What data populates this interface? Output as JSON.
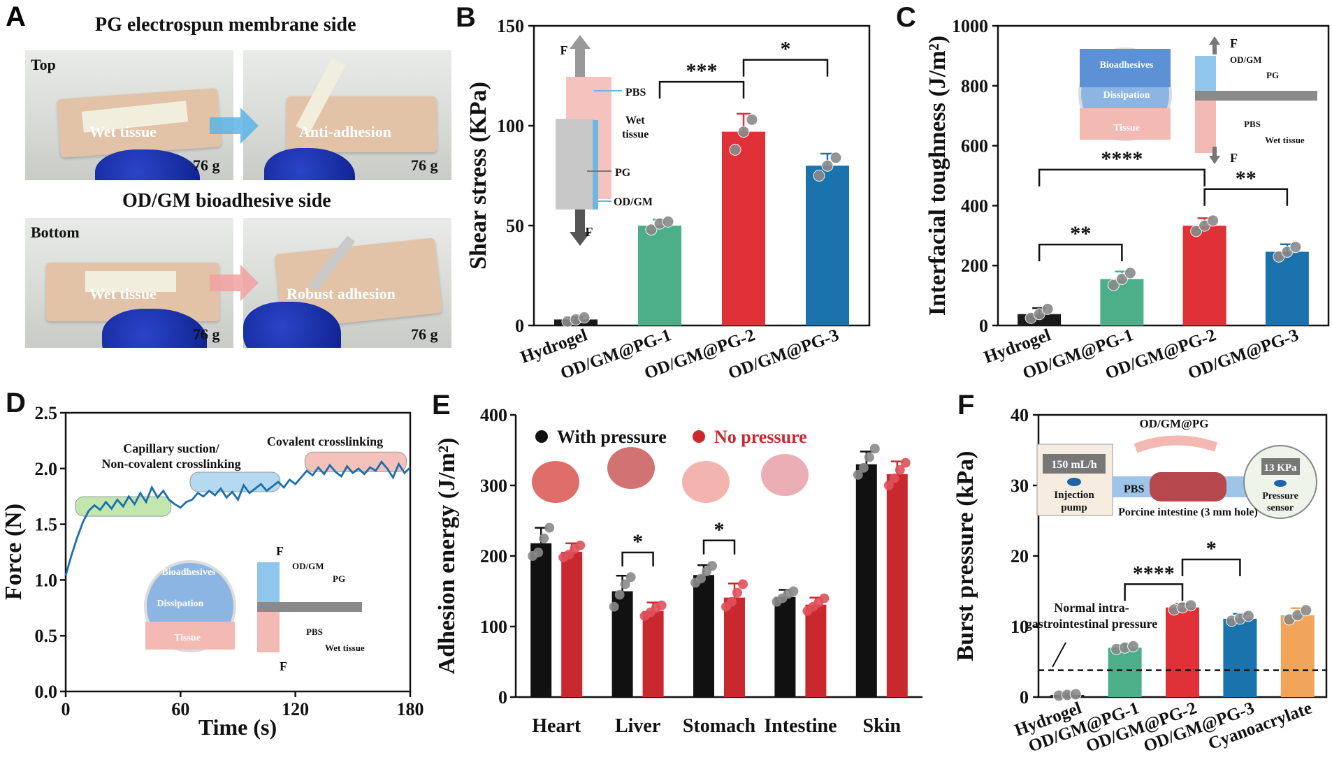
{
  "panelA": {
    "label": "A",
    "top_header": "PG electrospun membrane side",
    "bottom_header": "OD/GM bioadhesive side",
    "top_tag": "Top",
    "bottom_tag": "Bottom",
    "photo1_text": "Wet tissue",
    "photo2_text": "Anti-adhesion",
    "photo3_text": "Wet tissue",
    "photo4_text": "Robust adhesion",
    "weight": "76 g",
    "arrow_top_color": "#5ab4e6",
    "arrow_bottom_color": "#f2a0a0"
  },
  "chart_data": [
    {
      "panel": "B",
      "type": "bar",
      "ylabel": "Shear stress (KPa)",
      "categories": [
        "Hydrogel",
        "OD/GM@PG-1",
        "OD/GM@PG-2",
        "OD/GM@PG-3"
      ],
      "values": [
        3,
        50,
        97,
        80
      ],
      "errors": [
        1,
        3,
        9,
        6
      ],
      "points": [
        [
          2,
          3,
          4
        ],
        [
          48,
          51,
          52
        ],
        [
          88,
          97,
          103
        ],
        [
          75,
          80,
          84
        ]
      ],
      "colors": [
        "#1a1a1a",
        "#4caf8a",
        "#e03038",
        "#1a73ad"
      ],
      "ylim": [
        0,
        150
      ],
      "yticks": [
        0,
        50,
        100,
        150
      ],
      "significance": [
        {
          "from": 1,
          "to": 2,
          "label": "***",
          "level": 122
        },
        {
          "from": 2,
          "to": 3,
          "label": "*",
          "level": 133
        }
      ],
      "inset_labels": [
        "F",
        "PBS",
        "Wet tissue",
        "PG",
        "OD/GM",
        "F"
      ]
    },
    {
      "panel": "C",
      "type": "bar",
      "ylabel": "Interfacial toughness (J/m²)",
      "categories": [
        "Hydrogel",
        "OD/GM@PG-1",
        "OD/GM@PG-2",
        "OD/GM@PG-3"
      ],
      "values": [
        38,
        155,
        333,
        246
      ],
      "errors": [
        20,
        25,
        25,
        25
      ],
      "points": [
        [
          25,
          38,
          55
        ],
        [
          135,
          155,
          175
        ],
        [
          315,
          333,
          350
        ],
        [
          230,
          246,
          262
        ]
      ],
      "colors": [
        "#1a1a1a",
        "#4caf8a",
        "#e03038",
        "#1a73ad"
      ],
      "ylim": [
        0,
        1000
      ],
      "yticks": [
        0,
        200,
        400,
        600,
        800,
        1000
      ],
      "significance": [
        {
          "from": 0,
          "to": 1,
          "label": "**",
          "level": 270
        },
        {
          "from": 0,
          "to": 2,
          "label": "****",
          "level": 520
        },
        {
          "from": 2,
          "to": 3,
          "label": "**",
          "level": 455
        }
      ],
      "inset_labels": [
        "Bioadhesives",
        "Dissipation",
        "Tissue",
        "F",
        "OD/GM",
        "PG",
        "PBS",
        "Wet tissue",
        "F"
      ]
    },
    {
      "panel": "D",
      "type": "line",
      "xlabel": "Time (s)",
      "ylabel": "Force (N)",
      "xlim": [
        0,
        180
      ],
      "ylim": [
        0,
        2.5
      ],
      "xticks": [
        0,
        60,
        120,
        180
      ],
      "yticks": [
        0.0,
        0.5,
        1.0,
        1.5,
        2.0,
        2.5
      ],
      "x": [
        0,
        3,
        6,
        9,
        12,
        15,
        18,
        21,
        24,
        27,
        30,
        33,
        36,
        39,
        42,
        45,
        48,
        51,
        54,
        57,
        60,
        63,
        66,
        69,
        72,
        75,
        78,
        81,
        84,
        87,
        90,
        93,
        96,
        99,
        102,
        105,
        108,
        111,
        114,
        117,
        120,
        123,
        126,
        129,
        132,
        135,
        138,
        141,
        144,
        147,
        150,
        153,
        156,
        159,
        162,
        165,
        168,
        171,
        174,
        177,
        180
      ],
      "y": [
        1.04,
        1.22,
        1.38,
        1.52,
        1.62,
        1.67,
        1.63,
        1.7,
        1.64,
        1.72,
        1.66,
        1.75,
        1.68,
        1.78,
        1.7,
        1.83,
        1.74,
        1.8,
        1.72,
        1.68,
        1.65,
        1.7,
        1.72,
        1.78,
        1.75,
        1.8,
        1.76,
        1.82,
        1.74,
        1.79,
        1.72,
        1.85,
        1.78,
        1.82,
        1.86,
        1.8,
        1.84,
        1.88,
        1.83,
        1.9,
        1.86,
        1.92,
        1.98,
        1.94,
        2.01,
        1.95,
        2.03,
        1.97,
        1.93,
        2.02,
        1.96,
        2.0,
        1.95,
        2.01,
        1.98,
        2.06,
        2.0,
        1.92,
        2.04,
        1.96,
        2.01
      ],
      "color": "#1a6faf",
      "annotations": [
        {
          "text": "Capillary suction/",
          "text2": "Non-covalent crosslinking",
          "band_color": "#b8e3a0"
        },
        {
          "text": "Covalent crosslinking",
          "band_color": "#a9d3ef"
        },
        {
          "band_color": "#f4b8b0"
        }
      ],
      "inset_labels": [
        "Bioadhesives",
        "Dissipation",
        "Tissue",
        "F",
        "OD/GM",
        "PG",
        "PBS",
        "Wet tissue",
        "F"
      ]
    },
    {
      "panel": "E",
      "type": "bar",
      "ylabel": "Adhesion energy (J/m²)",
      "categories": [
        "Heart",
        "Liver",
        "Stomach",
        "Intestine",
        "Skin"
      ],
      "series": [
        {
          "name": "With pressure",
          "color": "#111111",
          "values": [
            218,
            150,
            173,
            142,
            330
          ],
          "errors": [
            22,
            22,
            14,
            10,
            18
          ],
          "points": [
            [
              200,
              205,
              225,
              240
            ],
            [
              128,
              145,
              160,
              170
            ],
            [
              162,
              168,
              178,
              186
            ],
            [
              135,
              140,
              146,
              150
            ],
            [
              315,
              325,
              340,
              352
            ]
          ]
        },
        {
          "name": "No pressure",
          "color": "#c8282e",
          "values": [
            206,
            122,
            141,
            131,
            316
          ],
          "errors": [
            12,
            12,
            20,
            10,
            18
          ],
          "points": [
            [
              198,
              202,
              210,
              215
            ],
            [
              115,
              120,
              126,
              130
            ],
            [
              128,
              135,
              148,
              160
            ],
            [
              122,
              128,
              134,
              140
            ],
            [
              300,
              310,
              322,
              332
            ]
          ]
        }
      ],
      "ylim": [
        0,
        400
      ],
      "yticks": [
        0,
        100,
        200,
        300,
        400
      ],
      "significance": [
        {
          "category": 1,
          "label": "*",
          "level": 205
        },
        {
          "category": 2,
          "label": "*",
          "level": 222
        }
      ]
    },
    {
      "panel": "F",
      "type": "bar",
      "ylabel": "Burst pressure (kPa)",
      "categories": [
        "Hydrogel",
        "OD/GM@PG-1",
        "OD/GM@PG-2",
        "OD/GM@PG-3",
        "Cyanoacrylate"
      ],
      "values": [
        0.3,
        7.0,
        12.7,
        11.1,
        11.6
      ],
      "errors": [
        0.2,
        0.4,
        0.5,
        0.7,
        1.0
      ],
      "points": [
        [
          0.2,
          0.3,
          0.4
        ],
        [
          6.8,
          7.0,
          7.2
        ],
        [
          12.4,
          12.7,
          13.0
        ],
        [
          10.8,
          11.1,
          11.5
        ],
        [
          11.0,
          11.6,
          12.3
        ]
      ],
      "colors": [
        "#1a1a1a",
        "#4caf8a",
        "#e03038",
        "#1a73ad",
        "#f0a55a"
      ],
      "ylim": [
        0,
        40
      ],
      "yticks": [
        0,
        10,
        20,
        30,
        40
      ],
      "reference_line": {
        "value": 3.8,
        "text1": "Normal intra-",
        "text2": "gastrointestinal pressure"
      },
      "significance": [
        {
          "from": 1,
          "to": 2,
          "label": "****",
          "level": 16
        },
        {
          "from": 2,
          "to": 3,
          "label": "*",
          "level": 19.5
        }
      ],
      "inset_labels": [
        "OD/GM@PG",
        "150 mL/h",
        "Injection",
        "pump",
        "PBS",
        "13 KPa",
        "Pressure",
        "sensor",
        "Porcine intestine (3 mm hole)"
      ]
    }
  ]
}
